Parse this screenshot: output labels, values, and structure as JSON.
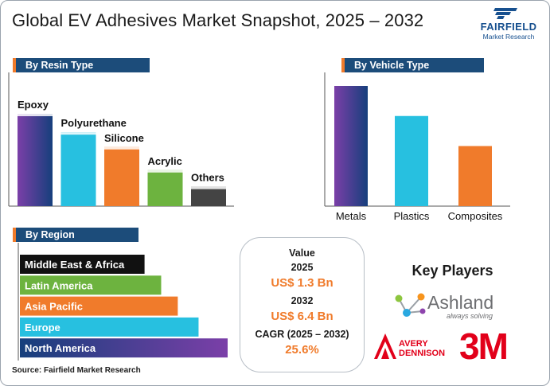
{
  "header": {
    "title": "Global EV Adhesives Market Snapshot, 2025 – 2032"
  },
  "logo": {
    "wordmark": "FAIRFIELD",
    "subtitle": "Market Research",
    "colors": {
      "primary": "#17508f"
    }
  },
  "sections": {
    "resin": "By Resin Type",
    "vehicle": "By Vehicle Type",
    "region": "By Region"
  },
  "colors": {
    "header_bg": "#1c4c7a",
    "accent": "#f07b2b",
    "purple_blue": [
      "#7b3fa8",
      "#163f7c"
    ],
    "cyan": "#27c0e0",
    "orange": "#f07b2b",
    "green": "#6db33f",
    "dark_gray": "#444444",
    "black": "#111111"
  },
  "chart_data": [
    {
      "type": "bar",
      "categories": [
        "Epoxy",
        "Polyurethane",
        "Silicone",
        "Acrylic",
        "Others"
      ],
      "values": [
        100,
        80,
        64,
        39,
        21
      ],
      "ylim": [
        0,
        100
      ],
      "title": "",
      "xlabel": "",
      "ylabel": "",
      "grid": false
    },
    {
      "type": "bar",
      "categories": [
        "Metals",
        "Plastics",
        "Composites"
      ],
      "values": [
        100,
        75,
        50
      ],
      "ylim": [
        0,
        100
      ],
      "title": "",
      "xlabel": "",
      "ylabel": "",
      "grid": false
    },
    {
      "type": "bar",
      "orientation": "horizontal",
      "categories": [
        "Middle East & Africa",
        "Latin America",
        "Asia Pacific",
        "Europe",
        "North America"
      ],
      "values": [
        60,
        68,
        76,
        86,
        100
      ],
      "xlim": [
        0,
        100
      ],
      "title": "",
      "xlabel": "",
      "ylabel": "",
      "grid": false
    }
  ],
  "value_box": {
    "label": "Value",
    "year1": "2025",
    "value1": "US$ 1.3 Bn",
    "year2": "2032",
    "value2": "US$ 6.4 Bn",
    "cagr_label": "CAGR (2025 – 2032)",
    "cagr_value": "25.6%"
  },
  "key_players": {
    "title": "Key Players",
    "ashland": {
      "name": "Ashland",
      "tagline": "always solving"
    },
    "avery": {
      "line1": "AVERY",
      "line2": "DENNISON"
    },
    "mmm": {
      "name": "3M"
    }
  },
  "footer": {
    "source": "Source: Fairfield Market Research"
  }
}
